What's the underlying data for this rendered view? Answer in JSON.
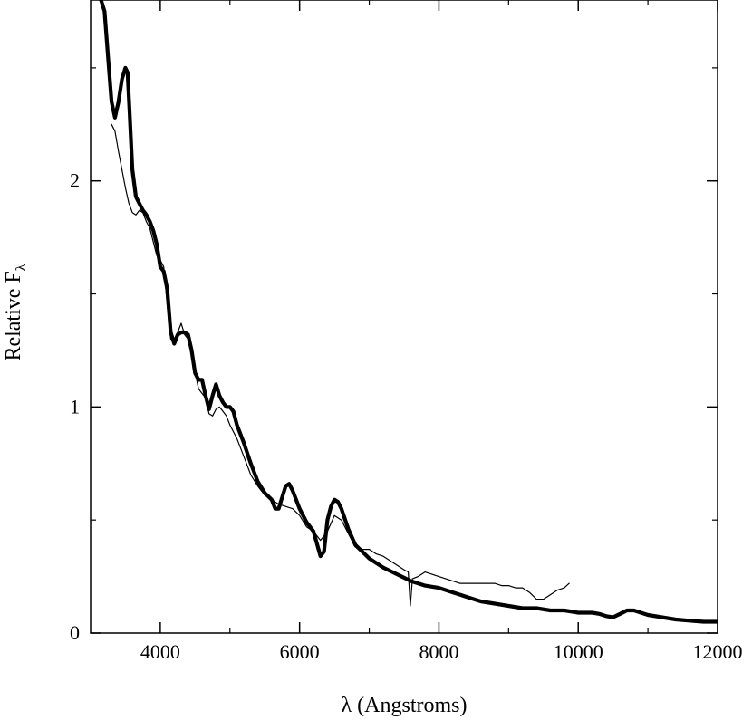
{
  "chart_data": {
    "type": "line",
    "title": "",
    "xlabel": "λ (Angstroms)",
    "ylabel": {
      "main": "Relative F",
      "subscript": "λ"
    },
    "xlim": [
      3000,
      12000
    ],
    "ylim": [
      0,
      2.8
    ],
    "xticks": [
      4000,
      6000,
      8000,
      10000,
      12000
    ],
    "yticks": [
      0,
      1,
      2
    ],
    "grid": false,
    "legend": "none",
    "series": [
      {
        "style": "thin",
        "color": "#000000",
        "x": [
          3300,
          3350,
          3400,
          3450,
          3500,
          3550,
          3600,
          3650,
          3700,
          3750,
          3800,
          3850,
          3900,
          3950,
          4000,
          4050,
          4100,
          4150,
          4200,
          4250,
          4300,
          4350,
          4400,
          4450,
          4500,
          4550,
          4600,
          4650,
          4700,
          4750,
          4800,
          4850,
          4900,
          4950,
          5000,
          5100,
          5200,
          5300,
          5400,
          5500,
          5600,
          5700,
          5800,
          5900,
          6000,
          6100,
          6200,
          6300,
          6400,
          6500,
          6600,
          6700,
          6800,
          6900,
          7000,
          7100,
          7200,
          7300,
          7400,
          7500,
          7560,
          7590,
          7620,
          7700,
          7800,
          7900,
          8000,
          8100,
          8200,
          8300,
          8400,
          8500,
          8600,
          8700,
          8800,
          8900,
          9000,
          9100,
          9200,
          9300,
          9400,
          9500,
          9600,
          9700,
          9800,
          9870
        ],
        "y": [
          2.25,
          2.22,
          2.13,
          2.05,
          1.97,
          1.9,
          1.86,
          1.85,
          1.87,
          1.86,
          1.82,
          1.79,
          1.73,
          1.67,
          1.65,
          1.62,
          1.45,
          1.3,
          1.3,
          1.33,
          1.37,
          1.32,
          1.3,
          1.26,
          1.15,
          1.08,
          1.06,
          1.04,
          0.97,
          0.96,
          0.99,
          1.0,
          0.98,
          0.96,
          0.92,
          0.86,
          0.78,
          0.7,
          0.65,
          0.61,
          0.59,
          0.57,
          0.56,
          0.55,
          0.52,
          0.47,
          0.45,
          0.41,
          0.45,
          0.52,
          0.5,
          0.44,
          0.38,
          0.37,
          0.37,
          0.35,
          0.34,
          0.32,
          0.3,
          0.28,
          0.27,
          0.12,
          0.24,
          0.25,
          0.27,
          0.26,
          0.25,
          0.24,
          0.23,
          0.22,
          0.22,
          0.22,
          0.22,
          0.22,
          0.22,
          0.21,
          0.21,
          0.2,
          0.2,
          0.18,
          0.15,
          0.15,
          0.17,
          0.19,
          0.2,
          0.22
        ]
      },
      {
        "style": "thick",
        "color": "#000000",
        "x": [
          3150,
          3200,
          3250,
          3300,
          3350,
          3400,
          3450,
          3500,
          3530,
          3560,
          3600,
          3650,
          3700,
          3750,
          3800,
          3850,
          3900,
          3950,
          4000,
          4050,
          4100,
          4150,
          4200,
          4250,
          4300,
          4350,
          4400,
          4450,
          4500,
          4550,
          4600,
          4650,
          4700,
          4750,
          4800,
          4850,
          4900,
          4950,
          5000,
          5050,
          5100,
          5200,
          5300,
          5400,
          5500,
          5600,
          5650,
          5700,
          5750,
          5800,
          5850,
          5900,
          6000,
          6100,
          6200,
          6300,
          6350,
          6400,
          6450,
          6500,
          6550,
          6600,
          6700,
          6800,
          6900,
          7000,
          7200,
          7400,
          7600,
          7800,
          8000,
          8200,
          8400,
          8600,
          8800,
          9000,
          9200,
          9400,
          9600,
          9800,
          10000,
          10100,
          10200,
          10300,
          10400,
          10500,
          10600,
          10700,
          10800,
          10900,
          11000,
          11200,
          11400,
          11600,
          11800,
          12000
        ],
        "y": [
          2.8,
          2.75,
          2.55,
          2.35,
          2.28,
          2.35,
          2.45,
          2.5,
          2.48,
          2.3,
          2.05,
          1.93,
          1.9,
          1.87,
          1.85,
          1.82,
          1.78,
          1.72,
          1.62,
          1.6,
          1.52,
          1.33,
          1.28,
          1.32,
          1.33,
          1.33,
          1.32,
          1.25,
          1.15,
          1.12,
          1.12,
          1.05,
          0.99,
          1.05,
          1.1,
          1.05,
          1.02,
          1.0,
          1.0,
          0.98,
          0.92,
          0.84,
          0.75,
          0.67,
          0.62,
          0.59,
          0.55,
          0.55,
          0.6,
          0.65,
          0.66,
          0.63,
          0.55,
          0.49,
          0.45,
          0.34,
          0.36,
          0.5,
          0.56,
          0.59,
          0.58,
          0.55,
          0.46,
          0.39,
          0.36,
          0.33,
          0.29,
          0.26,
          0.23,
          0.21,
          0.2,
          0.18,
          0.16,
          0.14,
          0.13,
          0.12,
          0.11,
          0.11,
          0.1,
          0.1,
          0.09,
          0.09,
          0.09,
          0.085,
          0.075,
          0.07,
          0.085,
          0.1,
          0.1,
          0.09,
          0.08,
          0.07,
          0.06,
          0.055,
          0.05,
          0.05
        ]
      }
    ]
  }
}
